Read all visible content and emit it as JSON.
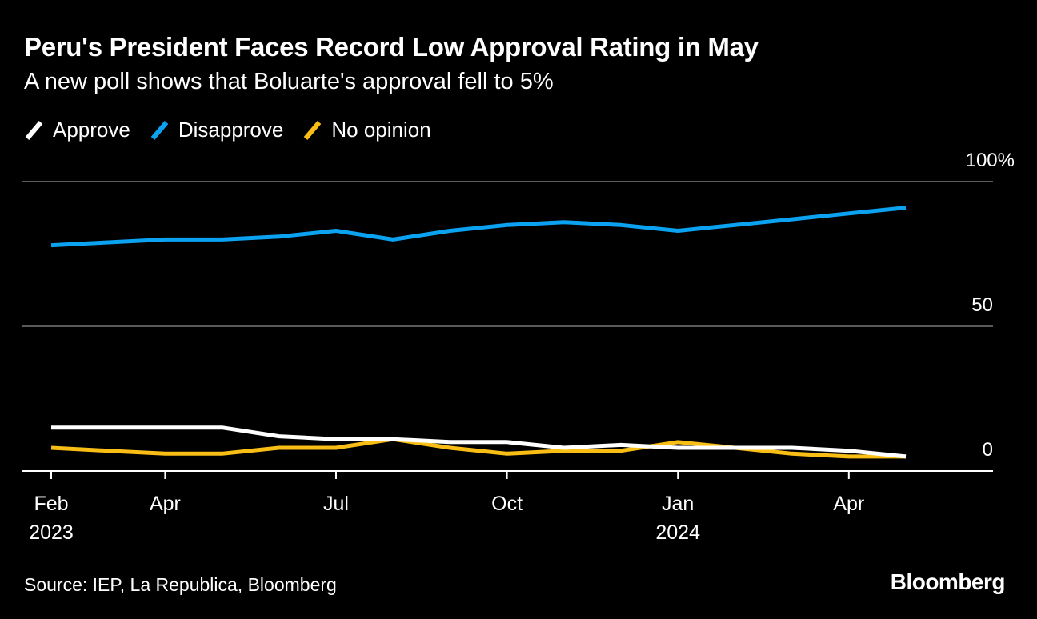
{
  "title": "Peru's President Faces Record Low Approval Rating in May",
  "subtitle": "A new poll shows that Boluarte's approval fell to 5%",
  "source": "Source: IEP, La Republica, Bloomberg",
  "brand": "Bloomberg",
  "chart_data": {
    "type": "line",
    "title": "Peru's President Faces Record Low Approval Rating in May",
    "subtitle": "A new poll shows that Boluarte's approval fell to 5%",
    "ylim": [
      0,
      100
    ],
    "y_ticks": [
      {
        "value": 100,
        "label": "100%"
      },
      {
        "value": 50,
        "label": "50"
      },
      {
        "value": 0,
        "label": "0"
      }
    ],
    "x_ticks": [
      {
        "x": "2023-02",
        "line1": "Feb",
        "line2": "2023"
      },
      {
        "x": "2023-04",
        "line1": "Apr",
        "line2": ""
      },
      {
        "x": "2023-07",
        "line1": "Jul",
        "line2": ""
      },
      {
        "x": "2023-10",
        "line1": "Oct",
        "line2": ""
      },
      {
        "x": "2024-01",
        "line1": "Jan",
        "line2": "2024"
      },
      {
        "x": "2024-04",
        "line1": "Apr",
        "line2": ""
      }
    ],
    "x_range": [
      "2023-01",
      "2024-06"
    ],
    "grid": true,
    "legend_position": "top-left",
    "x": [
      "2023-02",
      "2023-03",
      "2023-04",
      "2023-05",
      "2023-06",
      "2023-07",
      "2023-08",
      "2023-09",
      "2023-10",
      "2023-11",
      "2023-12",
      "2024-01",
      "2024-02",
      "2024-03",
      "2024-04",
      "2024-05"
    ],
    "series": [
      {
        "name": "Approve",
        "color": "#ffffff",
        "values": [
          15,
          15,
          15,
          15,
          12,
          11,
          11,
          10,
          10,
          8,
          9,
          8,
          8,
          8,
          7,
          5
        ]
      },
      {
        "name": "Disapprove",
        "color": "#0ba2f1",
        "values": [
          78,
          79,
          80,
          80,
          81,
          83,
          80,
          83,
          85,
          86,
          85,
          83,
          85,
          87,
          89,
          91
        ]
      },
      {
        "name": "No opinion",
        "color": "#f8be16",
        "values": [
          8,
          7,
          6,
          6,
          8,
          8,
          11,
          8,
          6,
          7,
          7,
          10,
          8,
          6,
          5,
          5
        ]
      }
    ]
  }
}
